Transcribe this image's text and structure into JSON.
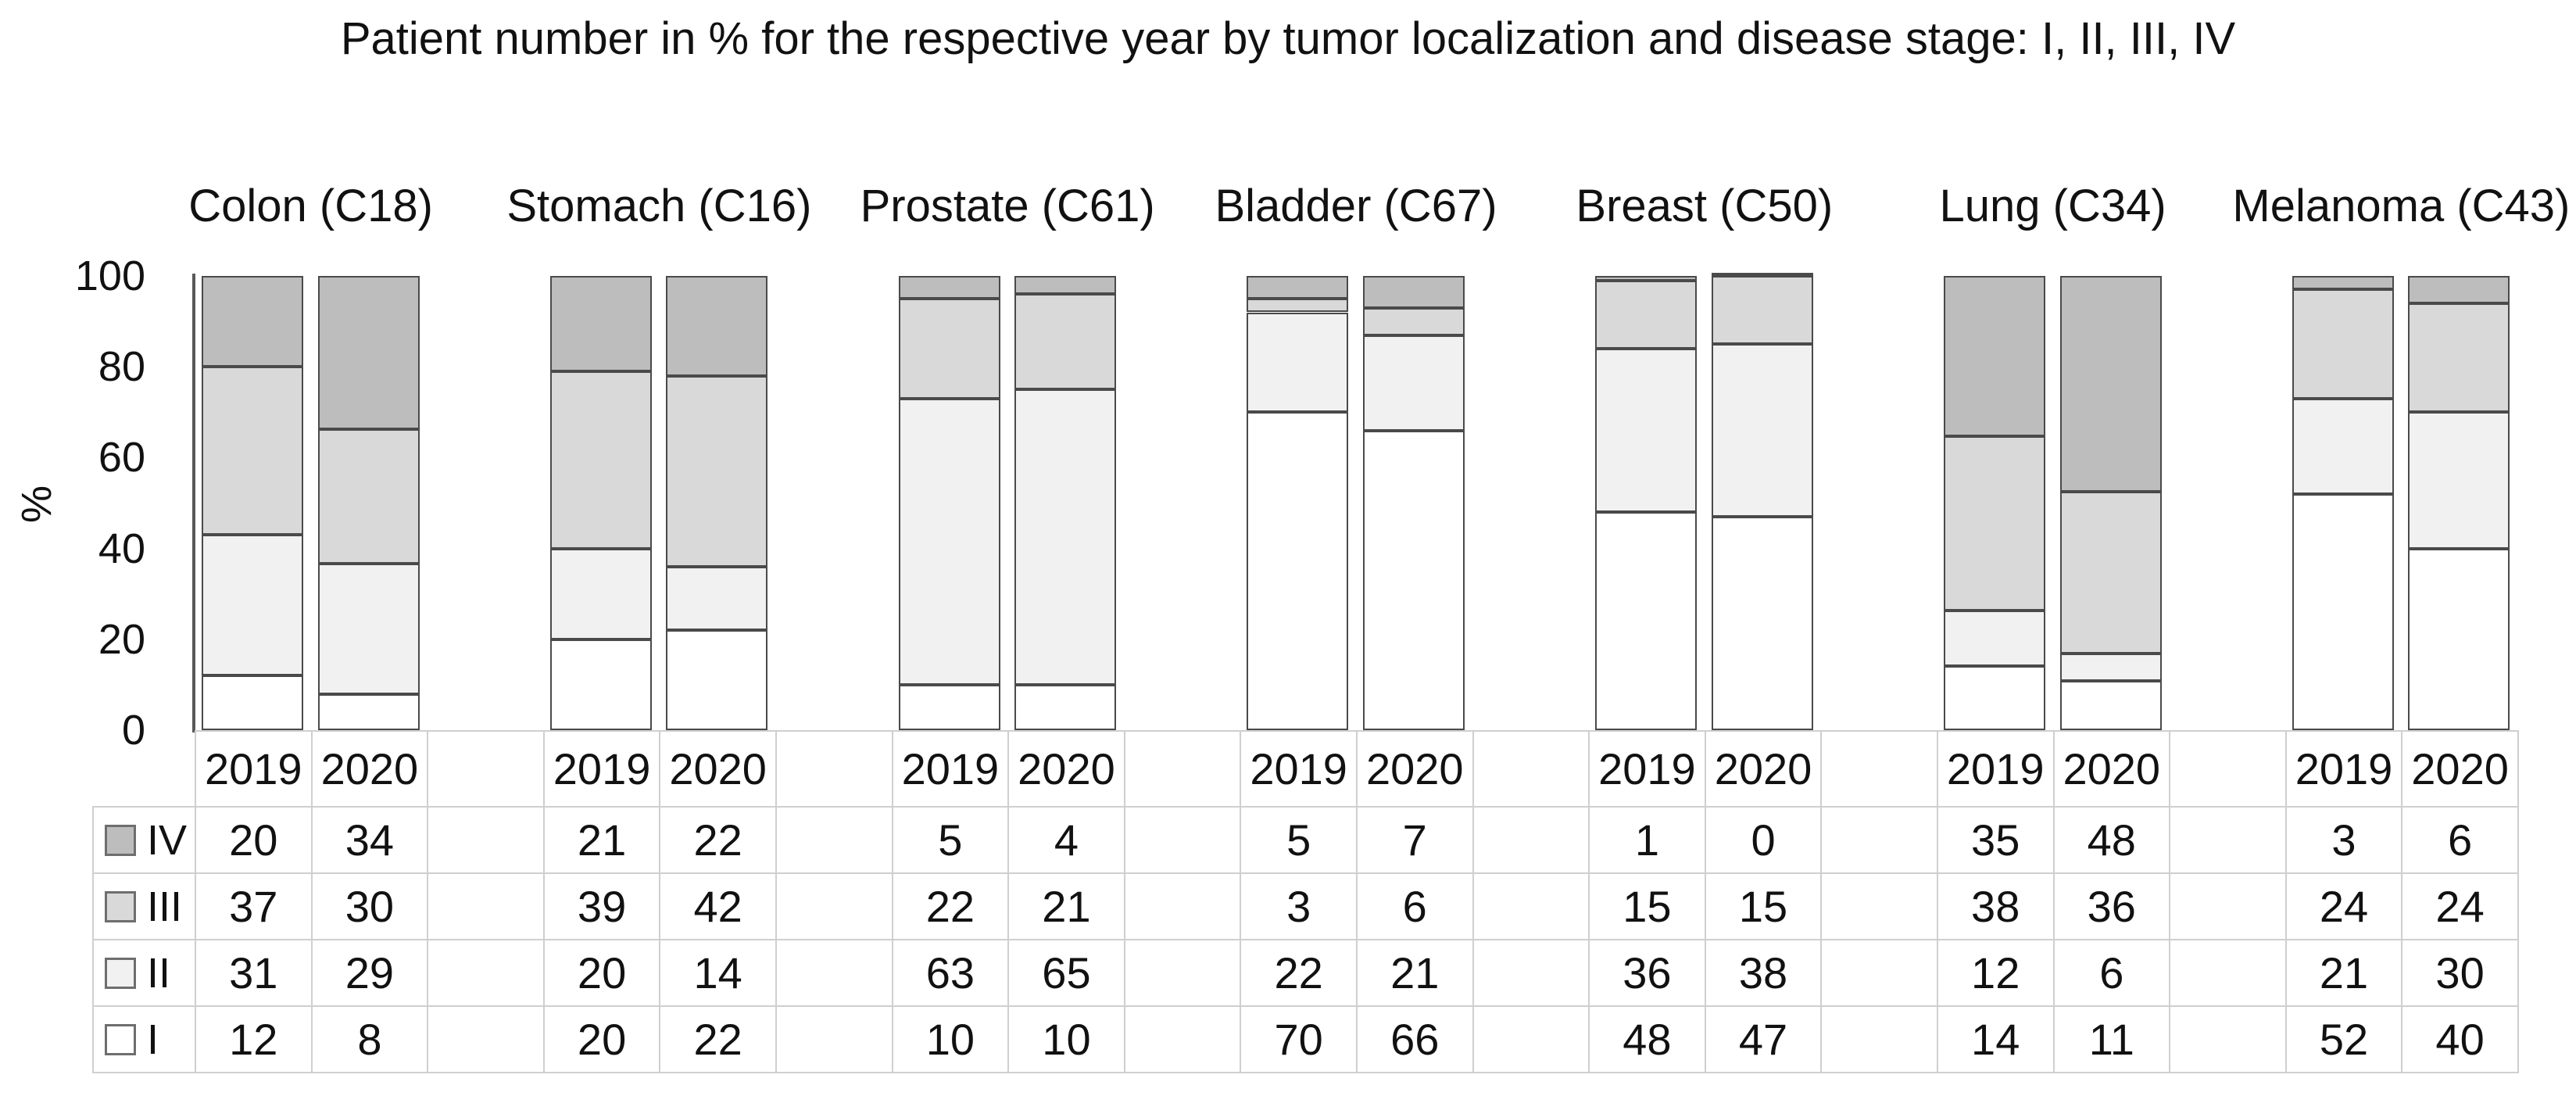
{
  "figure": {
    "title": "Patient number in % for the respective year by tumor localization and disease stage: I, II, III, IV",
    "y_axis_label": "%"
  },
  "chart_data": {
    "type": "bar",
    "stacked": true,
    "normalized_to_100": true,
    "title": "Patient number in % for the respective year by tumor localization and disease stage: I, II, III, IV",
    "ylabel": "%",
    "ylim": [
      0,
      100
    ],
    "yticks": [
      100,
      80,
      60,
      40,
      20,
      0
    ],
    "categories": [
      "2019",
      "2020"
    ],
    "stage_order_top_to_bottom": [
      "IV",
      "III",
      "II",
      "I"
    ],
    "legend": [
      {
        "name": "IV",
        "fill": "#bdbdbd"
      },
      {
        "name": "III",
        "fill": "#d9d9d9"
      },
      {
        "name": "II",
        "fill": "#f1f1f1"
      },
      {
        "name": "I",
        "fill": "#ffffff"
      }
    ],
    "groups": [
      {
        "label": "Colon (C18)",
        "series": [
          {
            "name": "IV",
            "values": [
              20,
              34
            ]
          },
          {
            "name": "III",
            "values": [
              37,
              30
            ]
          },
          {
            "name": "II",
            "values": [
              31,
              29
            ]
          },
          {
            "name": "I",
            "values": [
              12,
              8
            ]
          }
        ]
      },
      {
        "label": "Stomach (C16)",
        "series": [
          {
            "name": "IV",
            "values": [
              21,
              22
            ]
          },
          {
            "name": "III",
            "values": [
              39,
              42
            ]
          },
          {
            "name": "II",
            "values": [
              20,
              14
            ]
          },
          {
            "name": "I",
            "values": [
              20,
              22
            ]
          }
        ]
      },
      {
        "label": "Prostate (C61)",
        "series": [
          {
            "name": "IV",
            "values": [
              5,
              4
            ]
          },
          {
            "name": "III",
            "values": [
              22,
              21
            ]
          },
          {
            "name": "II",
            "values": [
              63,
              65
            ]
          },
          {
            "name": "I",
            "values": [
              10,
              10
            ]
          }
        ]
      },
      {
        "label": "Bladder (C67)",
        "series": [
          {
            "name": "IV",
            "values": [
              5,
              7
            ]
          },
          {
            "name": "III",
            "values": [
              3,
              6
            ]
          },
          {
            "name": "II",
            "values": [
              22,
              21
            ]
          },
          {
            "name": "I",
            "values": [
              70,
              66
            ]
          }
        ]
      },
      {
        "label": "Breast (C50)",
        "series": [
          {
            "name": "IV",
            "values": [
              1,
              0
            ]
          },
          {
            "name": "III",
            "values": [
              15,
              15
            ]
          },
          {
            "name": "II",
            "values": [
              36,
              38
            ]
          },
          {
            "name": "I",
            "values": [
              48,
              47
            ]
          }
        ]
      },
      {
        "label": "Lung (C34)",
        "series": [
          {
            "name": "IV",
            "values": [
              35,
              48
            ]
          },
          {
            "name": "III",
            "values": [
              38,
              36
            ]
          },
          {
            "name": "II",
            "values": [
              12,
              6
            ]
          },
          {
            "name": "I",
            "values": [
              14,
              11
            ]
          }
        ]
      },
      {
        "label": "Melanoma (C43)",
        "series": [
          {
            "name": "IV",
            "values": [
              3,
              6
            ]
          },
          {
            "name": "III",
            "values": [
              24,
              24
            ]
          },
          {
            "name": "II",
            "values": [
              21,
              30
            ]
          },
          {
            "name": "I",
            "values": [
              52,
              40
            ]
          }
        ]
      }
    ],
    "colors": {
      "segment_border": "#4a4a4a",
      "axis_line": "#595959",
      "grid_line": "#cfcfcf",
      "swatch_border": "#6e6e6e"
    },
    "legend_position": "table-left-column",
    "grid": false
  }
}
